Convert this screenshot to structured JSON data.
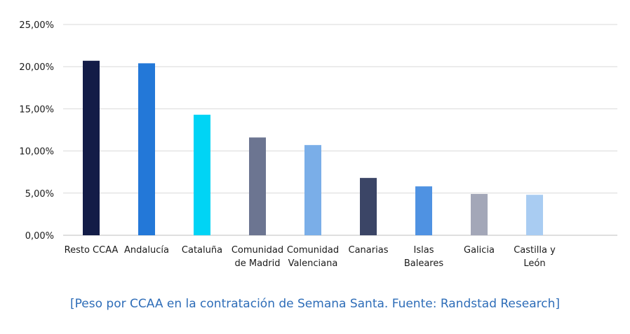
{
  "caption": "[Peso por CCAA en la contratación de Semana Santa. Fuente: Randstad Research]",
  "colors": {
    "caption": "#2e6db8",
    "grid": "#d9d9d9",
    "axis": "#bfbfbf"
  },
  "chart_data": {
    "type": "bar",
    "categories": [
      [
        "Resto CCAA"
      ],
      [
        "Andalucía"
      ],
      [
        "Cataluña"
      ],
      [
        "Comunidad",
        "de Madrid"
      ],
      [
        "Comunidad",
        "Valenciana"
      ],
      [
        "Canarias"
      ],
      [
        "Islas",
        "Baleares"
      ],
      [
        "Galicia"
      ],
      [
        "Castilla y",
        "León"
      ]
    ],
    "values": [
      20.7,
      20.4,
      14.3,
      11.6,
      10.7,
      6.8,
      5.8,
      4.9,
      4.8
    ],
    "bar_colors": [
      "#131c47",
      "#2378d8",
      "#00d4f5",
      "#6c7591",
      "#7aaee8",
      "#3b4566",
      "#4f92e2",
      "#a3a7b8",
      "#a9ccf2"
    ],
    "ylim": [
      0,
      25
    ],
    "yticks": [
      0,
      5,
      10,
      15,
      20,
      25
    ],
    "ytick_labels": [
      "0,00%",
      "5,00%",
      "10,00%",
      "15,00%",
      "20,00%",
      "25,00%"
    ],
    "grid": true,
    "title": "",
    "xlabel": "",
    "ylabel": ""
  }
}
